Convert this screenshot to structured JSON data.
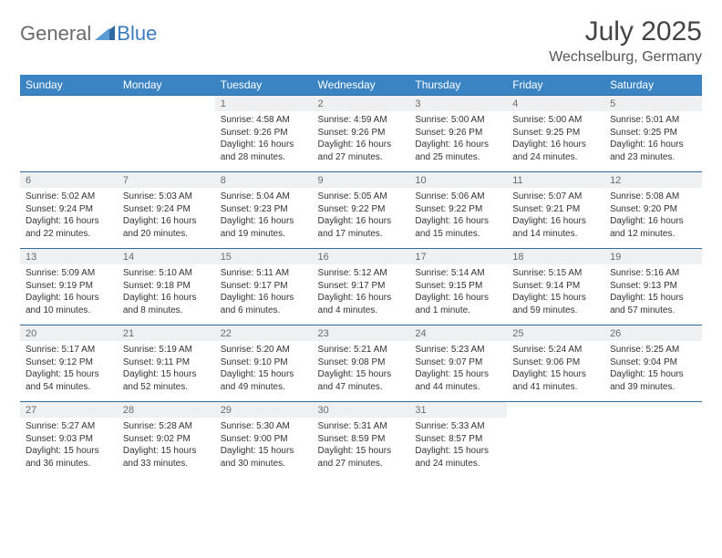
{
  "brand": {
    "part1": "General",
    "part2": "Blue"
  },
  "title": "July 2025",
  "location": "Wechselburg, Germany",
  "colors": {
    "header_bg": "#3b84c4",
    "header_text": "#ffffff",
    "daynum_bg": "#eef0f2",
    "row_border": "#2f6aa0",
    "brand_gray": "#6a6a6a",
    "brand_blue": "#3b7bbf"
  },
  "dayNames": [
    "Sunday",
    "Monday",
    "Tuesday",
    "Wednesday",
    "Thursday",
    "Friday",
    "Saturday"
  ],
  "weeks": [
    [
      {
        "n": "",
        "sr": "",
        "ss": "",
        "dl": ""
      },
      {
        "n": "",
        "sr": "",
        "ss": "",
        "dl": ""
      },
      {
        "n": "1",
        "sr": "Sunrise: 4:58 AM",
        "ss": "Sunset: 9:26 PM",
        "dl": "Daylight: 16 hours and 28 minutes."
      },
      {
        "n": "2",
        "sr": "Sunrise: 4:59 AM",
        "ss": "Sunset: 9:26 PM",
        "dl": "Daylight: 16 hours and 27 minutes."
      },
      {
        "n": "3",
        "sr": "Sunrise: 5:00 AM",
        "ss": "Sunset: 9:26 PM",
        "dl": "Daylight: 16 hours and 25 minutes."
      },
      {
        "n": "4",
        "sr": "Sunrise: 5:00 AM",
        "ss": "Sunset: 9:25 PM",
        "dl": "Daylight: 16 hours and 24 minutes."
      },
      {
        "n": "5",
        "sr": "Sunrise: 5:01 AM",
        "ss": "Sunset: 9:25 PM",
        "dl": "Daylight: 16 hours and 23 minutes."
      }
    ],
    [
      {
        "n": "6",
        "sr": "Sunrise: 5:02 AM",
        "ss": "Sunset: 9:24 PM",
        "dl": "Daylight: 16 hours and 22 minutes."
      },
      {
        "n": "7",
        "sr": "Sunrise: 5:03 AM",
        "ss": "Sunset: 9:24 PM",
        "dl": "Daylight: 16 hours and 20 minutes."
      },
      {
        "n": "8",
        "sr": "Sunrise: 5:04 AM",
        "ss": "Sunset: 9:23 PM",
        "dl": "Daylight: 16 hours and 19 minutes."
      },
      {
        "n": "9",
        "sr": "Sunrise: 5:05 AM",
        "ss": "Sunset: 9:22 PM",
        "dl": "Daylight: 16 hours and 17 minutes."
      },
      {
        "n": "10",
        "sr": "Sunrise: 5:06 AM",
        "ss": "Sunset: 9:22 PM",
        "dl": "Daylight: 16 hours and 15 minutes."
      },
      {
        "n": "11",
        "sr": "Sunrise: 5:07 AM",
        "ss": "Sunset: 9:21 PM",
        "dl": "Daylight: 16 hours and 14 minutes."
      },
      {
        "n": "12",
        "sr": "Sunrise: 5:08 AM",
        "ss": "Sunset: 9:20 PM",
        "dl": "Daylight: 16 hours and 12 minutes."
      }
    ],
    [
      {
        "n": "13",
        "sr": "Sunrise: 5:09 AM",
        "ss": "Sunset: 9:19 PM",
        "dl": "Daylight: 16 hours and 10 minutes."
      },
      {
        "n": "14",
        "sr": "Sunrise: 5:10 AM",
        "ss": "Sunset: 9:18 PM",
        "dl": "Daylight: 16 hours and 8 minutes."
      },
      {
        "n": "15",
        "sr": "Sunrise: 5:11 AM",
        "ss": "Sunset: 9:17 PM",
        "dl": "Daylight: 16 hours and 6 minutes."
      },
      {
        "n": "16",
        "sr": "Sunrise: 5:12 AM",
        "ss": "Sunset: 9:17 PM",
        "dl": "Daylight: 16 hours and 4 minutes."
      },
      {
        "n": "17",
        "sr": "Sunrise: 5:14 AM",
        "ss": "Sunset: 9:15 PM",
        "dl": "Daylight: 16 hours and 1 minute."
      },
      {
        "n": "18",
        "sr": "Sunrise: 5:15 AM",
        "ss": "Sunset: 9:14 PM",
        "dl": "Daylight: 15 hours and 59 minutes."
      },
      {
        "n": "19",
        "sr": "Sunrise: 5:16 AM",
        "ss": "Sunset: 9:13 PM",
        "dl": "Daylight: 15 hours and 57 minutes."
      }
    ],
    [
      {
        "n": "20",
        "sr": "Sunrise: 5:17 AM",
        "ss": "Sunset: 9:12 PM",
        "dl": "Daylight: 15 hours and 54 minutes."
      },
      {
        "n": "21",
        "sr": "Sunrise: 5:19 AM",
        "ss": "Sunset: 9:11 PM",
        "dl": "Daylight: 15 hours and 52 minutes."
      },
      {
        "n": "22",
        "sr": "Sunrise: 5:20 AM",
        "ss": "Sunset: 9:10 PM",
        "dl": "Daylight: 15 hours and 49 minutes."
      },
      {
        "n": "23",
        "sr": "Sunrise: 5:21 AM",
        "ss": "Sunset: 9:08 PM",
        "dl": "Daylight: 15 hours and 47 minutes."
      },
      {
        "n": "24",
        "sr": "Sunrise: 5:23 AM",
        "ss": "Sunset: 9:07 PM",
        "dl": "Daylight: 15 hours and 44 minutes."
      },
      {
        "n": "25",
        "sr": "Sunrise: 5:24 AM",
        "ss": "Sunset: 9:06 PM",
        "dl": "Daylight: 15 hours and 41 minutes."
      },
      {
        "n": "26",
        "sr": "Sunrise: 5:25 AM",
        "ss": "Sunset: 9:04 PM",
        "dl": "Daylight: 15 hours and 39 minutes."
      }
    ],
    [
      {
        "n": "27",
        "sr": "Sunrise: 5:27 AM",
        "ss": "Sunset: 9:03 PM",
        "dl": "Daylight: 15 hours and 36 minutes."
      },
      {
        "n": "28",
        "sr": "Sunrise: 5:28 AM",
        "ss": "Sunset: 9:02 PM",
        "dl": "Daylight: 15 hours and 33 minutes."
      },
      {
        "n": "29",
        "sr": "Sunrise: 5:30 AM",
        "ss": "Sunset: 9:00 PM",
        "dl": "Daylight: 15 hours and 30 minutes."
      },
      {
        "n": "30",
        "sr": "Sunrise: 5:31 AM",
        "ss": "Sunset: 8:59 PM",
        "dl": "Daylight: 15 hours and 27 minutes."
      },
      {
        "n": "31",
        "sr": "Sunrise: 5:33 AM",
        "ss": "Sunset: 8:57 PM",
        "dl": "Daylight: 15 hours and 24 minutes."
      },
      {
        "n": "",
        "sr": "",
        "ss": "",
        "dl": ""
      },
      {
        "n": "",
        "sr": "",
        "ss": "",
        "dl": ""
      }
    ]
  ]
}
